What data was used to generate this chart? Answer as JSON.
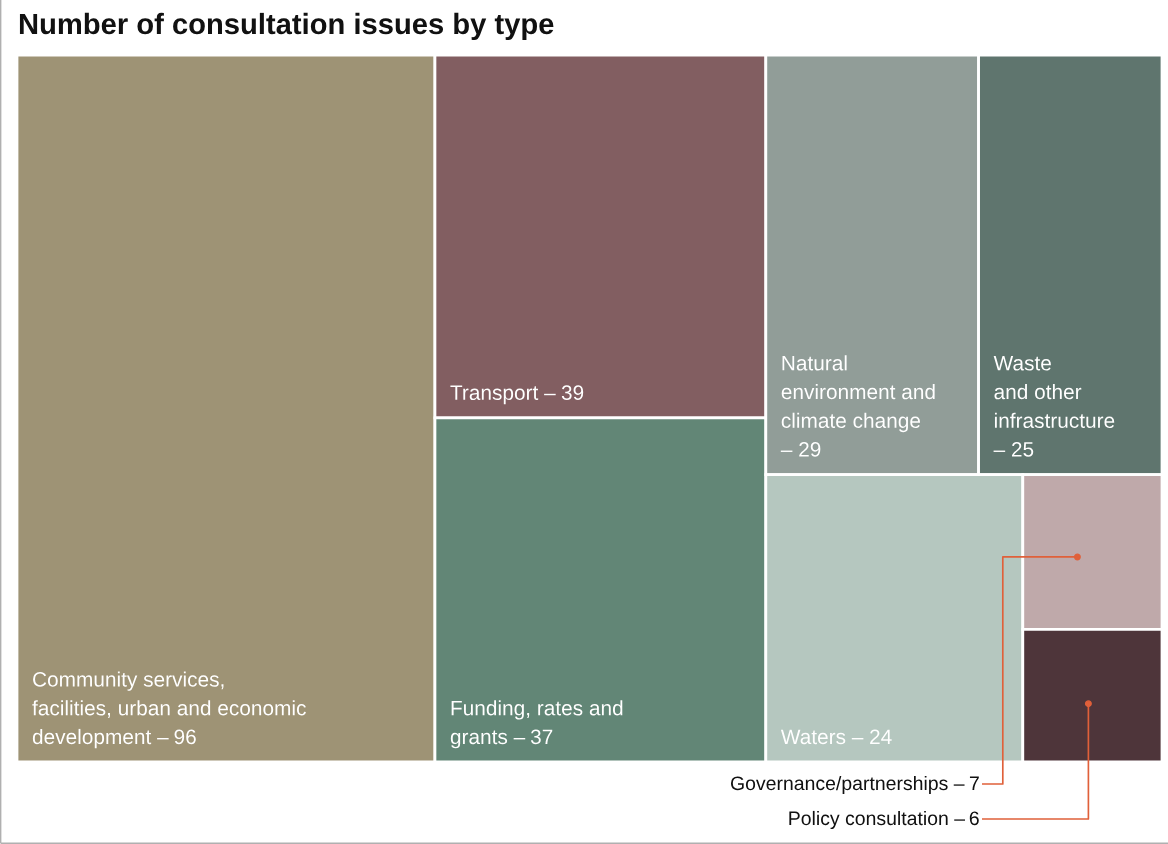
{
  "chart_data": {
    "type": "other",
    "title": "Number of consultation issues by type",
    "categories": [
      "Community services,\nfacilities, urban and economic\ndevelopment –",
      "Transport –",
      "Funding, rates and\ngrants –",
      "Natural\nenvironment and\nclimate change\n–",
      "Waste\nand other\ninfrastructure\n–",
      "Waters –",
      "Governance/partnerships –",
      "Policy consultation –"
    ],
    "values": [
      96,
      39,
      37,
      29,
      25,
      24,
      7,
      6
    ],
    "colors": [
      "#9e9375",
      "#825e61",
      "#628676",
      "#919d98",
      "#5f756e",
      "#b5c7bf",
      "#bfa9aa",
      "#4e353a"
    ],
    "data_labels": true
  }
}
